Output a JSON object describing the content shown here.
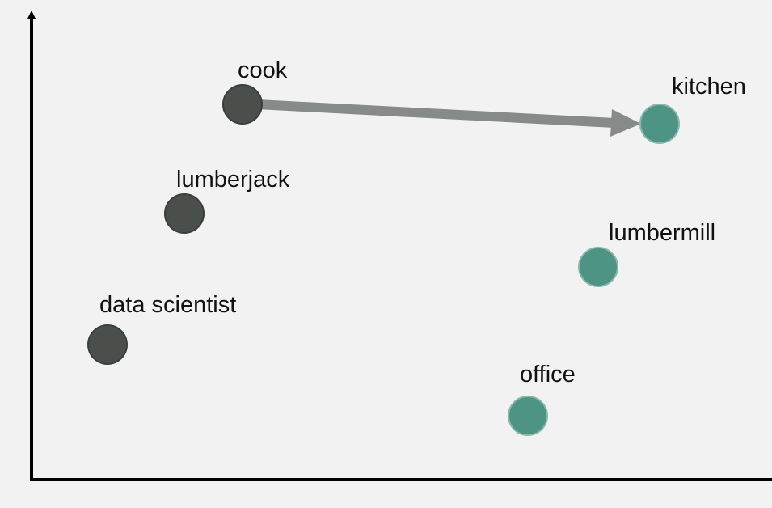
{
  "colors": {
    "background": "#f2f2f2",
    "axis": "#000000",
    "occupation_fill": "#4a4f4c",
    "occupation_stroke": "#3a3e3c",
    "place_fill": "#4e9484",
    "place_stroke": "#8ab8ad",
    "arrow": "#868a88"
  },
  "occupations": [
    {
      "id": "cook",
      "label": "cook"
    },
    {
      "id": "lumberjack",
      "label": "lumberjack"
    },
    {
      "id": "data-scientist",
      "label": "data scientist"
    }
  ],
  "places": [
    {
      "id": "kitchen",
      "label": "kitchen"
    },
    {
      "id": "lumbermill",
      "label": "lumbermill"
    },
    {
      "id": "office",
      "label": "office"
    }
  ],
  "arrow": {
    "from": "cook",
    "to": "kitchen"
  }
}
